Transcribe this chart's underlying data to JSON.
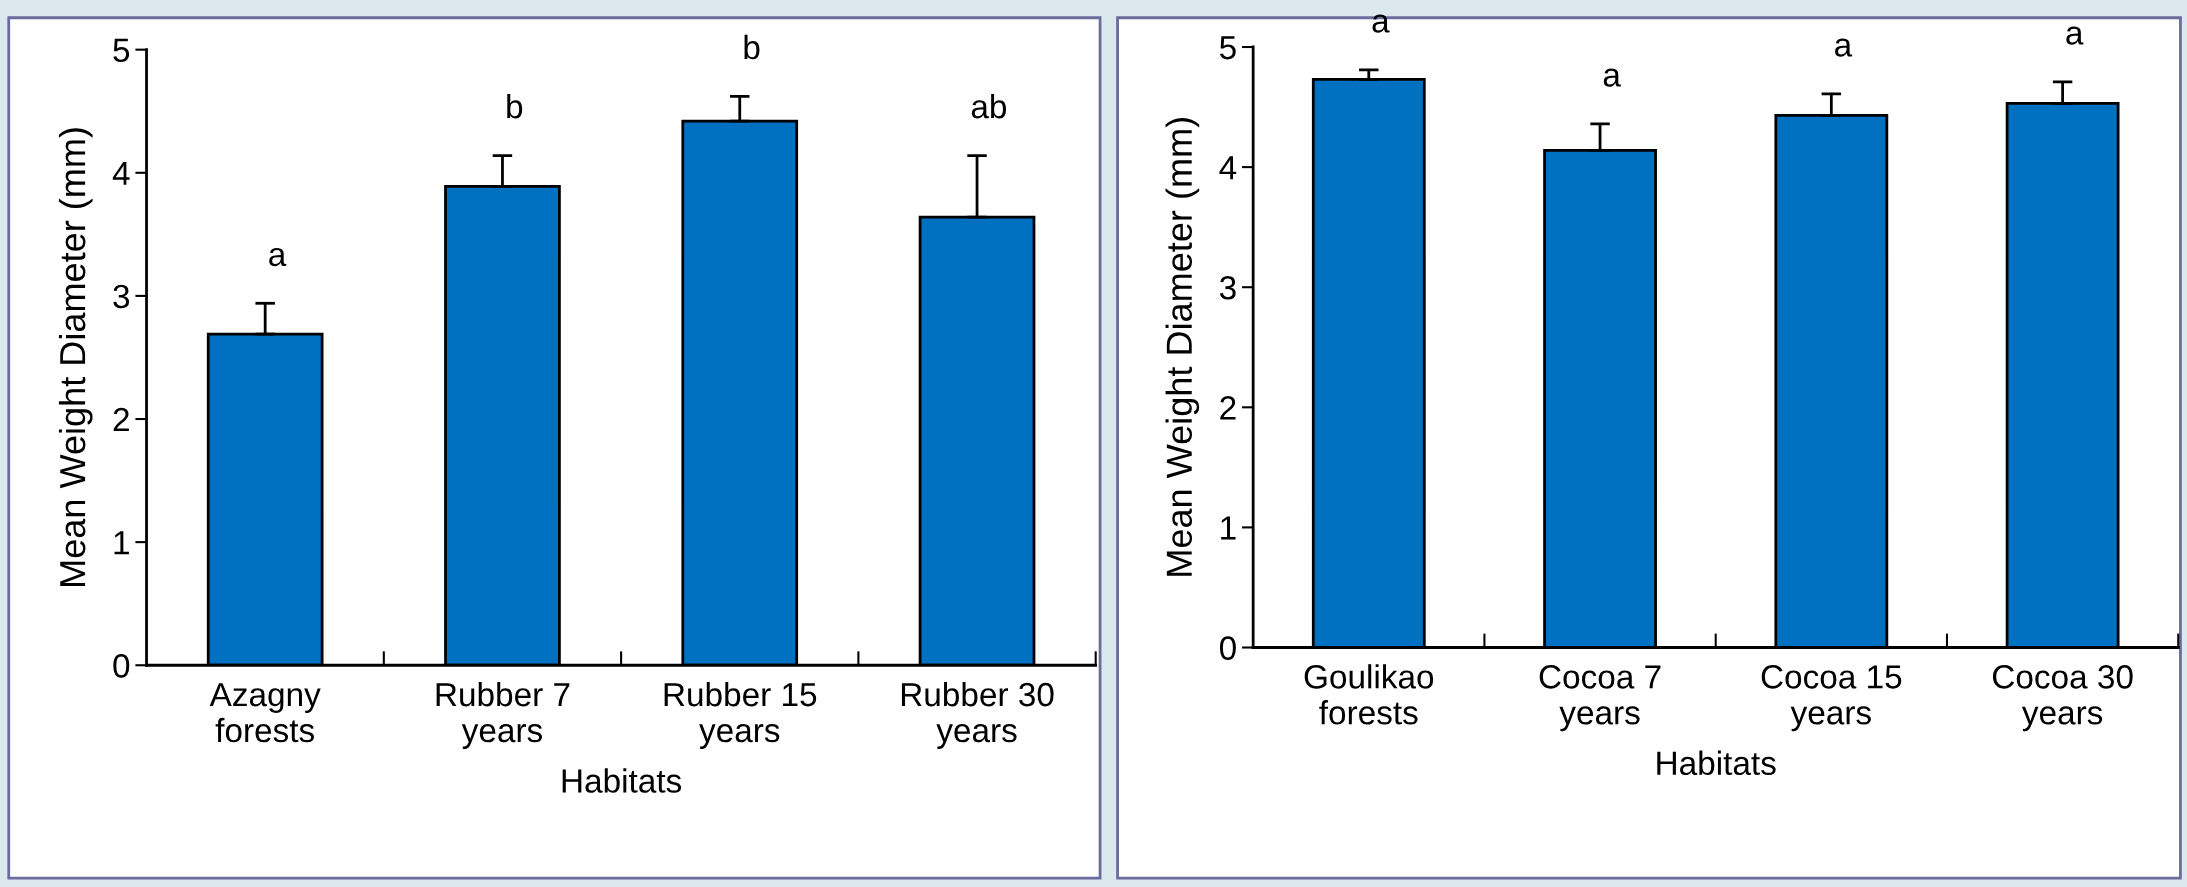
{
  "chart_data": [
    {
      "type": "bar",
      "xlabel": "Habitats",
      "ylabel": "Mean Weight Diameter (mm)",
      "categories": [
        "Azagny\nforests",
        "Rubber 7\nyears",
        "Rubber 15\nyears",
        "Rubber 30\nyears"
      ],
      "values": [
        2.69,
        3.89,
        4.42,
        3.64
      ],
      "errors": [
        [
          2.69,
          2.94
        ],
        [
          3.89,
          4.14
        ],
        [
          4.42,
          4.62
        ],
        [
          3.64,
          4.14
        ]
      ],
      "color": "#0070c0",
      "ylim": [
        0,
        5
      ],
      "yticks": [
        0,
        1,
        2,
        3,
        4,
        5
      ],
      "grid": false,
      "legend": false,
      "annotations": [
        "a",
        "b",
        "b",
        "ab"
      ]
    },
    {
      "type": "bar",
      "xlabel": "Habitats",
      "ylabel": "Mean Weight Diameter (mm)",
      "categories": [
        "Goulikao\nforests",
        "Cocoa 7\nyears",
        "Cocoa 15\nyears",
        "Cocoa 30\nyears"
      ],
      "values": [
        4.73,
        4.14,
        4.43,
        4.53
      ],
      "errors": [
        [
          4.73,
          4.81
        ],
        [
          4.14,
          4.36
        ],
        [
          4.43,
          4.61
        ],
        [
          4.53,
          4.71
        ]
      ],
      "color": "#0070c0",
      "ylim": [
        0,
        5
      ],
      "yticks": [
        0,
        1,
        2,
        3,
        4,
        5
      ],
      "grid": false,
      "legend": false,
      "annotations": [
        "a",
        "a",
        "a",
        "a"
      ]
    }
  ]
}
